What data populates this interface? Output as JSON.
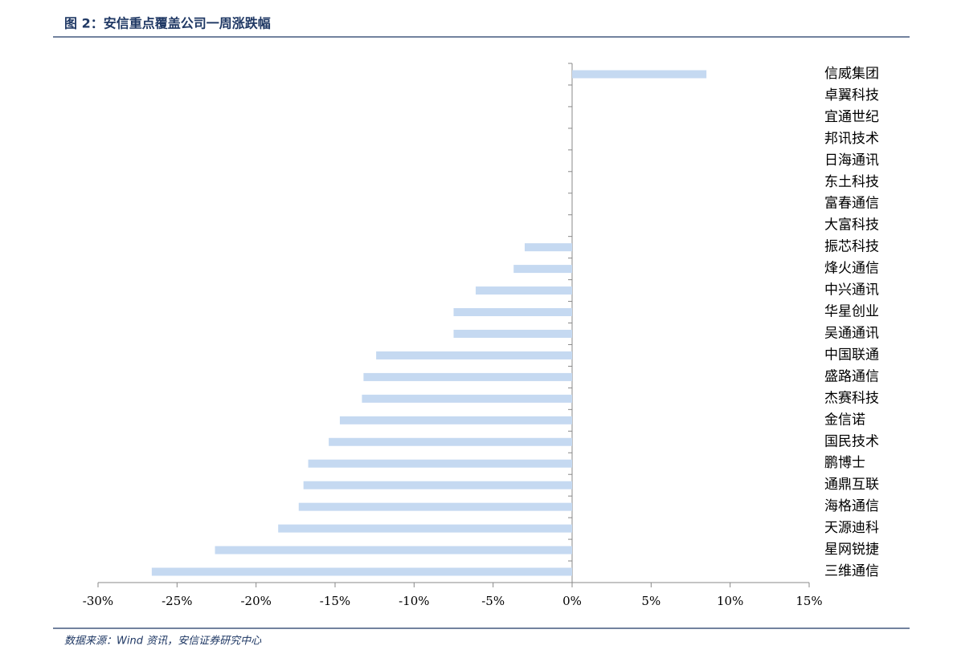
{
  "chart_data": {
    "type": "barh",
    "title": "图 2：安信重点覆盖公司一周涨跌幅",
    "source": "数据来源：Wind 资讯，安信证券研究中心",
    "categories": [
      "信威集团",
      "卓翼科技",
      "宜通世纪",
      "邦讯技术",
      "日海通讯",
      "东土科技",
      "富春通信",
      "大富科技",
      "振芯科技",
      "烽火通信",
      "中兴通讯",
      "华星创业",
      "吴通通讯",
      "中国联通",
      "盛路通信",
      "杰赛科技",
      "金信诺",
      "国民技术",
      "鹏博士",
      "通鼎互联",
      "海格通信",
      "天源迪科",
      "星网锐捷",
      "三维通信"
    ],
    "values": [
      8.5,
      0,
      0,
      0,
      0,
      0,
      0,
      0,
      -3.0,
      -3.7,
      -6.1,
      -7.5,
      -7.5,
      -12.4,
      -13.2,
      -13.3,
      -14.7,
      -15.4,
      -16.7,
      -17.0,
      -17.3,
      -18.6,
      -22.6,
      -26.6
    ],
    "color": "#c5d9f1",
    "xlim": [
      -30,
      15
    ],
    "xticks": [
      {
        "value": -30,
        "label": "-30%"
      },
      {
        "value": -25,
        "label": "-25%"
      },
      {
        "value": -20,
        "label": "-20%"
      },
      {
        "value": -15,
        "label": "-15%"
      },
      {
        "value": -10,
        "label": "-10%"
      },
      {
        "value": -5,
        "label": "-5%"
      },
      {
        "value": 0,
        "label": "0%"
      },
      {
        "value": 5,
        "label": "5%"
      },
      {
        "value": 10,
        "label": "10%"
      },
      {
        "value": 15,
        "label": "15%"
      }
    ]
  }
}
